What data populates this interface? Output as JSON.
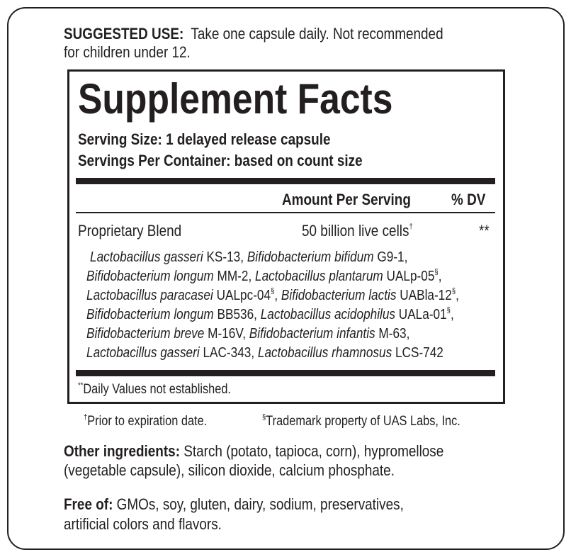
{
  "suggested_use": {
    "label": "SUGGESTED USE:",
    "text_line1": "Take one capsule daily. Not recommended",
    "text_line2": "for children under 12."
  },
  "facts": {
    "title": "Supplement Facts",
    "serving_size": "Serving Size: 1 delayed release capsule",
    "servings_per_container": "Servings Per Container: based on count size",
    "header_amount": "Amount Per Serving",
    "header_dv": "% DV",
    "blend_name": "Proprietary Blend",
    "blend_amount": "50 billion live cells",
    "blend_amount_mark": "†",
    "blend_dv": "**",
    "strains": [
      {
        "species": "Lactobacillus gasseri",
        "strain": "KS-13,",
        "tm": ""
      },
      {
        "species": "Bifidobacterium bifidum",
        "strain": "G9-1,",
        "tm": ""
      },
      {
        "species": "Bifidobacterium longum",
        "strain": "MM-2,",
        "tm": ""
      },
      {
        "species": "Lactobacillus plantarum",
        "strain": "UALp-05",
        "tm": "§"
      },
      {
        "species": "Lactobacillus paracasei",
        "strain": "UALpc-04",
        "tm": "§"
      },
      {
        "species": "Bifidobacterium lactis",
        "strain": "UABla-12",
        "tm": "§"
      },
      {
        "species": "Bifidobacterium longum",
        "strain": "BB536,",
        "tm": ""
      },
      {
        "species": "Lactobacillus acidophilus",
        "strain": "UALa-01",
        "tm": "§"
      },
      {
        "species": "Bifidobacterium breve",
        "strain": "M-16V,",
        "tm": ""
      },
      {
        "species": "Bifidobacterium infantis",
        "strain": "M-63,",
        "tm": ""
      },
      {
        "species": "Lactobacillus gasseri",
        "strain": "LAC-343,",
        "tm": ""
      },
      {
        "species": "Lactobacillus rhamnosus",
        "strain": "LCS-742",
        "tm": ""
      }
    ],
    "dv_note_mark": "**",
    "dv_note": "Daily Values not established."
  },
  "footnotes": {
    "dagger_mark": "†",
    "dagger_text": "Prior to expiration date.",
    "section_mark": "§",
    "section_text": "Trademark property of UAS Labs, Inc."
  },
  "other_ingredients": {
    "label": "Other ingredients:",
    "line1": "Starch (potato, tapioca, corn), hypromellose",
    "line2": "(vegetable capsule), silicon dioxide, calcium phosphate."
  },
  "free_of": {
    "label": "Free of:",
    "line1": "GMOs, soy, gluten, dairy, sodium, preservatives,",
    "line2": "artificial colors and flavors."
  }
}
